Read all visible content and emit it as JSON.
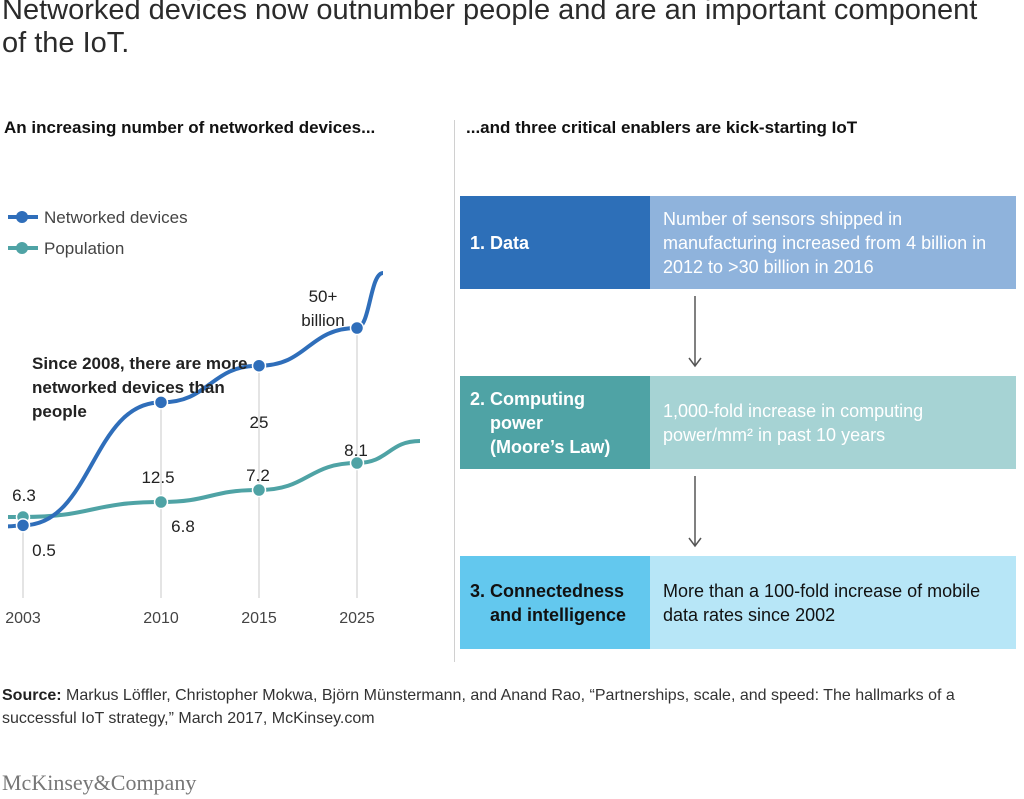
{
  "title": "Networked devices now outnumber people and are an important component of the IoT.",
  "left_heading": "An increasing number of networked devices...",
  "right_heading": "...and three critical enablers are kick-starting IoT",
  "annotation": "Since 2008, there are more networked devices than people",
  "colors": {
    "devices": "#2f6eba",
    "population": "#4fa3a5",
    "data_dark": "#2d6fb8",
    "data_light": "#8fb3dc",
    "compute_dark": "#4fa3a5",
    "compute_light": "#a6d3d4",
    "connect_dark": "#63c8ee",
    "connect_light": "#b7e6f7"
  },
  "chart_data": {
    "type": "line",
    "x": [
      2003,
      2010,
      2015,
      2025
    ],
    "xticks": [
      "2003",
      "2010",
      "2015",
      "2025"
    ],
    "series": [
      {
        "name": "Networked devices",
        "values": [
          0.5,
          12.5,
          25,
          50
        ],
        "labels": [
          "0.5",
          "12.5",
          "25",
          "50+\nbillion"
        ]
      },
      {
        "name": "Population",
        "values": [
          6.3,
          6.8,
          7.2,
          8.1
        ],
        "labels": [
          "6.3",
          "6.8",
          "7.2",
          "8.1"
        ]
      }
    ],
    "legend": "top-left"
  },
  "enablers": [
    {
      "label": "1. Data",
      "description": "Number of sensors shipped in manufacturing increased from 4 billion in 2012 to >30 billion in 2016"
    },
    {
      "label": "2. Computing power (Moore’s Law)",
      "description": "1,000-fold increase in computing power/mm² in past 10 years"
    },
    {
      "label": "3. Connectedness and intelligence",
      "description": "More than a 100-fold increase of mobile data rates since 2002"
    }
  ],
  "source": {
    "prefix": "Source:",
    "text": "Markus Löffler, Christopher Mokwa, Björn Münstermann, and Anand Rao, “Partnerships, scale, and speed: The hallmarks of a successful IoT strategy,” March 2017, McKinsey.com"
  },
  "logo": "McKinsey&Company"
}
